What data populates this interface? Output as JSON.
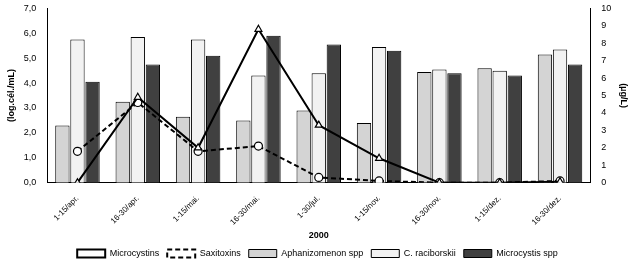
{
  "chart_data": {
    "type": "bar",
    "x_label": "2000",
    "y_label": "(log.cél./mL)",
    "y2_label": "(µg/L)",
    "categories": [
      "1-15/apr.",
      "16-30/apr.",
      "1-15/mai.",
      "16-30/mai.",
      "1-30/jul.",
      "1-15/nov.",
      "16-30/nov.",
      "1-15/dez.",
      "16-30/dez."
    ],
    "ylim": [
      0,
      7
    ],
    "yticks": [
      {
        "value": 0,
        "label": "0,0"
      },
      {
        "value": 1,
        "label": "1,0"
      },
      {
        "value": 2,
        "label": "2,0"
      },
      {
        "value": 3,
        "label": "3,0"
      },
      {
        "value": 4,
        "label": "4,0"
      },
      {
        "value": 5,
        "label": "5,0"
      },
      {
        "value": 6,
        "label": "6,0"
      },
      {
        "value": 7,
        "label": "7,0"
      }
    ],
    "y2lim": [
      0,
      10
    ],
    "y2ticks": [
      0,
      1,
      2,
      3,
      4,
      5,
      6,
      7,
      8,
      9,
      10
    ],
    "grid": false,
    "legend": "bottom",
    "series": [
      {
        "name": "Aphanizomenon spp",
        "type": "bar",
        "color": "#d4d4d4",
        "values": [
          2.3,
          3.25,
          2.65,
          2.5,
          2.9,
          2.4,
          4.45,
          4.6,
          5.15
        ]
      },
      {
        "name": "C. raciborskii",
        "type": "bar",
        "color": "#f2f2f2",
        "values": [
          5.75,
          5.85,
          5.75,
          4.3,
          4.4,
          5.45,
          4.55,
          4.5,
          5.35
        ]
      },
      {
        "name": "Microcystis spp",
        "type": "bar",
        "color": "#404040",
        "values": [
          4.05,
          4.75,
          5.1,
          5.9,
          5.55,
          5.3,
          4.4,
          4.3,
          4.75
        ]
      },
      {
        "name": "Microcystins",
        "type": "line",
        "axis": "y2",
        "color": "#000000",
        "marker": "triangle",
        "line_style": "solid",
        "values": [
          0,
          4.9,
          2.0,
          8.8,
          3.3,
          1.4,
          0,
          0,
          0.05
        ]
      },
      {
        "name": "Saxitoxins",
        "type": "line",
        "axis": "y2",
        "color": "#000000",
        "marker": "circle",
        "line_style": "dashed",
        "values": [
          1.8,
          4.6,
          1.8,
          2.1,
          0.3,
          0.1,
          0,
          0,
          0.1
        ]
      }
    ]
  }
}
